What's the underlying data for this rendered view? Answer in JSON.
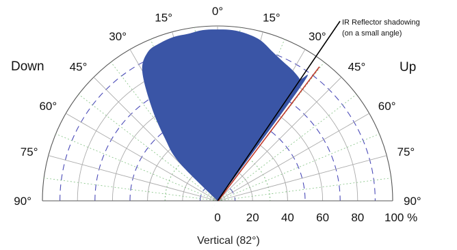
{
  "chart_data": {
    "type": "polar",
    "caption": "Vertical (82°)",
    "side_labels": {
      "left": "Down",
      "right": "Up"
    },
    "angle_labels": {
      "left": [
        "0°",
        "15°",
        "30°",
        "45°",
        "60°",
        "75°",
        "90°"
      ],
      "right": [
        "15°",
        "30°",
        "45°",
        "60°",
        "75°",
        "90°"
      ]
    },
    "radial_ticks": [
      "0",
      "20",
      "40",
      "60",
      "80",
      "100 %"
    ],
    "radial_unit": "%",
    "angle_range": [
      -90,
      90
    ],
    "radial_range": [
      0,
      100
    ],
    "series": [
      {
        "fill_color": "#3a55a6",
        "angles": [
          -90,
          -60,
          -45,
          -40,
          -35,
          -30,
          -25,
          -20,
          -15,
          -10,
          -5,
          0,
          5,
          10,
          15,
          20,
          25,
          30,
          34,
          36,
          37,
          90
        ],
        "values": [
          0,
          0,
          31,
          47,
          66,
          86,
          94,
          96,
          97,
          97,
          98,
          98,
          98,
          97,
          95,
          91,
          88,
          86,
          84,
          82,
          0,
          0
        ]
      }
    ],
    "annotation": {
      "text_line1": "IR Reflector shadowing",
      "text_line2": "(on a small angle)",
      "angle": 37
    }
  },
  "colors": {
    "fill": "#3a55a6",
    "grid_solid": "#aaaaaa",
    "grid_dashed": "#4a4ab8",
    "grid_dotted": "#7fc07f",
    "shadow_line": "#000000",
    "shadow_edge": "#c0392b"
  }
}
